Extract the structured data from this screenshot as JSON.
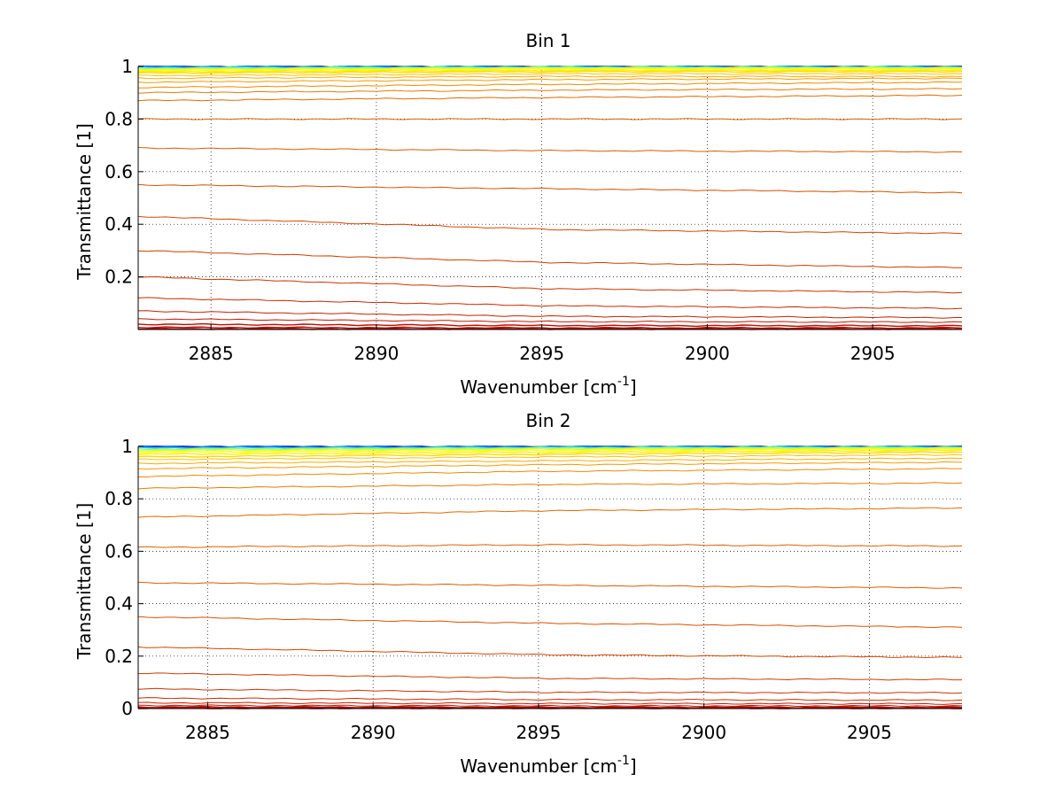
{
  "figure": {
    "background": "#ffffff"
  },
  "chart_data": [
    {
      "type": "line",
      "title": "Bin 1",
      "xlabel": "Wavenumber [cm",
      "xlabel_sup": "-1",
      "xlabel_end": "]",
      "ylabel": "Transmittance [1]",
      "xlim": [
        2882.8,
        2907.7
      ],
      "ylim": [
        0,
        1
      ],
      "xticks": [
        2885,
        2890,
        2895,
        2900,
        2905
      ],
      "xtick_labels": [
        "2885",
        "2890",
        "2895",
        "2900",
        "2905"
      ],
      "yticks": [
        0.2,
        0.4,
        0.6,
        0.8,
        1
      ],
      "ytick_labels": [
        "0.2",
        "0.4",
        "0.6",
        "0.8",
        "1"
      ],
      "grid": true,
      "series": [
        {
          "color": "#00008f",
          "values": [
            1.0,
            1.0,
            1.0
          ]
        },
        {
          "color": "#0050ff",
          "values": [
            0.999,
            0.999,
            0.999
          ]
        },
        {
          "color": "#20c0ff",
          "values": [
            0.997,
            0.998,
            0.998
          ]
        },
        {
          "color": "#80ff80",
          "values": [
            0.993,
            0.996,
            0.996
          ]
        },
        {
          "color": "#d0ff30",
          "values": [
            0.99,
            0.994,
            0.994
          ]
        },
        {
          "color": "#ffff00",
          "values": [
            0.985,
            0.99,
            0.99
          ]
        },
        {
          "color": "#ffee00",
          "values": [
            0.98,
            0.985,
            0.985
          ]
        },
        {
          "color": "#ffd800",
          "values": [
            0.975,
            0.98,
            0.98
          ]
        },
        {
          "color": "#ffc000",
          "values": [
            0.965,
            0.972,
            0.972
          ]
        },
        {
          "color": "#ffaa00",
          "values": [
            0.955,
            0.962,
            0.962
          ]
        },
        {
          "color": "#f59a00",
          "values": [
            0.94,
            0.95,
            0.955
          ]
        },
        {
          "color": "#ef8a00",
          "values": [
            0.92,
            0.932,
            0.94
          ]
        },
        {
          "color": "#e87a00",
          "values": [
            0.9,
            0.91,
            0.915
          ]
        },
        {
          "color": "#e06a00",
          "values": [
            0.87,
            0.882,
            0.89
          ]
        },
        {
          "color": "#dd6000",
          "values": [
            0.8,
            0.8,
            0.8
          ]
        },
        {
          "color": "#dd5a00",
          "values": [
            0.69,
            0.68,
            0.675
          ]
        },
        {
          "color": "#d95000",
          "values": [
            0.55,
            0.535,
            0.52
          ]
        },
        {
          "color": "#d54600",
          "values": [
            0.43,
            0.38,
            0.365
          ]
        },
        {
          "color": "#d03c00",
          "values": [
            0.3,
            0.255,
            0.235
          ]
        },
        {
          "color": "#cc3300",
          "values": [
            0.2,
            0.155,
            0.14
          ]
        },
        {
          "color": "#c82a00",
          "values": [
            0.12,
            0.09,
            0.08
          ]
        },
        {
          "color": "#c42000",
          "values": [
            0.07,
            0.05,
            0.045
          ]
        },
        {
          "color": "#c01600",
          "values": [
            0.04,
            0.03,
            0.028
          ]
        },
        {
          "color": "#bb1000",
          "values": [
            0.02,
            0.015,
            0.014
          ]
        },
        {
          "color": "#b80800",
          "values": [
            0.008,
            0.006,
            0.006
          ]
        },
        {
          "color": "#b50000",
          "values": [
            0.002,
            0.002,
            0.002
          ]
        }
      ]
    },
    {
      "type": "line",
      "title": "Bin 2",
      "xlabel": "Wavenumber [cm",
      "xlabel_sup": "-1",
      "xlabel_end": "]",
      "ylabel": "Transmittance [1]",
      "xlim": [
        2882.9,
        2907.8
      ],
      "ylim": [
        0,
        1
      ],
      "xticks": [
        2885,
        2890,
        2895,
        2900,
        2905
      ],
      "xtick_labels": [
        "2885",
        "2890",
        "2895",
        "2900",
        "2905"
      ],
      "yticks": [
        0,
        0.2,
        0.4,
        0.6,
        0.8,
        1
      ],
      "ytick_labels": [
        "0",
        "0.2",
        "0.4",
        "0.6",
        "0.8",
        "1"
      ],
      "grid": true,
      "series": [
        {
          "color": "#00008f",
          "values": [
            1.0,
            1.0,
            1.0
          ]
        },
        {
          "color": "#0050ff",
          "values": [
            0.998,
            0.999,
            0.999
          ]
        },
        {
          "color": "#20c0ff",
          "values": [
            0.995,
            0.997,
            0.998
          ]
        },
        {
          "color": "#80ff80",
          "values": [
            0.99,
            0.994,
            0.996
          ]
        },
        {
          "color": "#d0ff30",
          "values": [
            0.985,
            0.99,
            0.993
          ]
        },
        {
          "color": "#ffff00",
          "values": [
            0.978,
            0.985,
            0.99
          ]
        },
        {
          "color": "#ffee00",
          "values": [
            0.97,
            0.978,
            0.985
          ]
        },
        {
          "color": "#ffd800",
          "values": [
            0.96,
            0.97,
            0.978
          ]
        },
        {
          "color": "#ffc000",
          "values": [
            0.95,
            0.96,
            0.968
          ]
        },
        {
          "color": "#ffaa00",
          "values": [
            0.935,
            0.945,
            0.955
          ]
        },
        {
          "color": "#f59a00",
          "values": [
            0.915,
            0.93,
            0.94
          ]
        },
        {
          "color": "#ef8a00",
          "values": [
            0.885,
            0.905,
            0.915
          ]
        },
        {
          "color": "#e87a00",
          "values": [
            0.84,
            0.855,
            0.86
          ]
        },
        {
          "color": "#e06a00",
          "values": [
            0.73,
            0.755,
            0.765
          ]
        },
        {
          "color": "#dd6000",
          "values": [
            0.615,
            0.625,
            0.62
          ]
        },
        {
          "color": "#dd5a00",
          "values": [
            0.48,
            0.47,
            0.46
          ]
        },
        {
          "color": "#d95000",
          "values": [
            0.35,
            0.325,
            0.31
          ]
        },
        {
          "color": "#d54600",
          "values": [
            0.235,
            0.205,
            0.195
          ]
        },
        {
          "color": "#d03c00",
          "values": [
            0.135,
            0.115,
            0.11
          ]
        },
        {
          "color": "#cc3300",
          "values": [
            0.075,
            0.062,
            0.06
          ]
        },
        {
          "color": "#c82a00",
          "values": [
            0.04,
            0.034,
            0.032
          ]
        },
        {
          "color": "#c42000",
          "values": [
            0.022,
            0.019,
            0.018
          ]
        },
        {
          "color": "#c01600",
          "values": [
            0.012,
            0.01,
            0.01
          ]
        },
        {
          "color": "#bb1000",
          "values": [
            0.006,
            0.005,
            0.005
          ]
        },
        {
          "color": "#b80800",
          "values": [
            0.003,
            0.003,
            0.003
          ]
        },
        {
          "color": "#b50000",
          "values": [
            0.001,
            0.001,
            0.001
          ]
        }
      ]
    }
  ]
}
